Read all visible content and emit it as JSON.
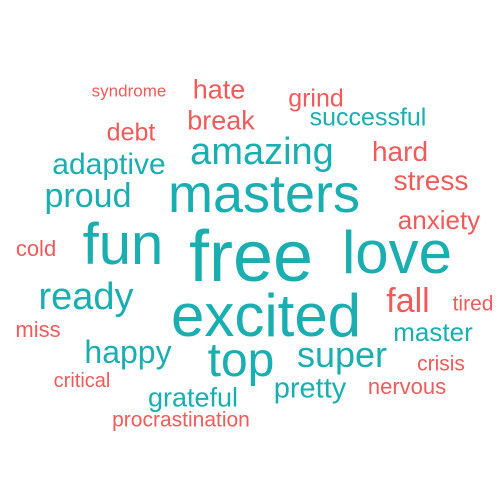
{
  "colors": {
    "positive": "#1aaeb0",
    "negative": "#ef5b5b",
    "background": "#ffffff"
  },
  "words": [
    {
      "text": "syndrome",
      "sentiment": "negative"
    },
    {
      "text": "hate",
      "sentiment": "negative"
    },
    {
      "text": "grind",
      "sentiment": "negative"
    },
    {
      "text": "break",
      "sentiment": "negative"
    },
    {
      "text": "successful",
      "sentiment": "positive"
    },
    {
      "text": "debt",
      "sentiment": "negative"
    },
    {
      "text": "amazing",
      "sentiment": "positive"
    },
    {
      "text": "hard",
      "sentiment": "negative"
    },
    {
      "text": "adaptive",
      "sentiment": "positive"
    },
    {
      "text": "masters",
      "sentiment": "positive"
    },
    {
      "text": "stress",
      "sentiment": "negative"
    },
    {
      "text": "proud",
      "sentiment": "positive"
    },
    {
      "text": "anxiety",
      "sentiment": "negative"
    },
    {
      "text": "cold",
      "sentiment": "negative"
    },
    {
      "text": "fun",
      "sentiment": "positive"
    },
    {
      "text": "free",
      "sentiment": "positive"
    },
    {
      "text": "love",
      "sentiment": "positive"
    },
    {
      "text": "ready",
      "sentiment": "positive"
    },
    {
      "text": "excited",
      "sentiment": "positive"
    },
    {
      "text": "fall",
      "sentiment": "negative"
    },
    {
      "text": "tired",
      "sentiment": "negative"
    },
    {
      "text": "miss",
      "sentiment": "negative"
    },
    {
      "text": "master",
      "sentiment": "positive"
    },
    {
      "text": "happy",
      "sentiment": "positive"
    },
    {
      "text": "top",
      "sentiment": "positive"
    },
    {
      "text": "super",
      "sentiment": "positive"
    },
    {
      "text": "crisis",
      "sentiment": "negative"
    },
    {
      "text": "critical",
      "sentiment": "negative"
    },
    {
      "text": "pretty",
      "sentiment": "positive"
    },
    {
      "text": "nervous",
      "sentiment": "negative"
    },
    {
      "text": "grateful",
      "sentiment": "positive"
    },
    {
      "text": "procrastination",
      "sentiment": "negative"
    }
  ]
}
